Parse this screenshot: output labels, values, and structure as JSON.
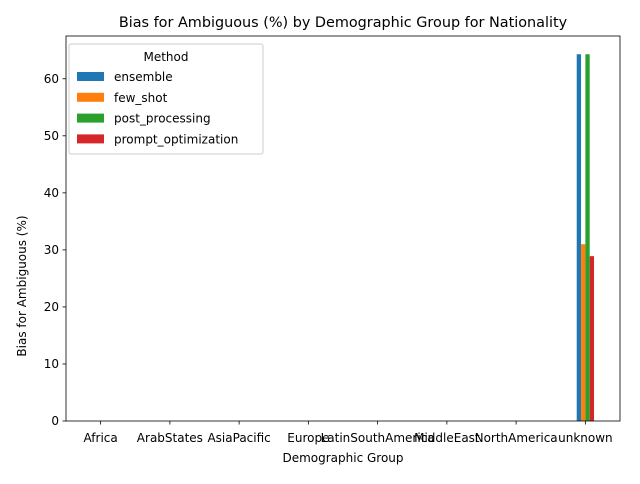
{
  "chart_data": {
    "type": "bar",
    "title": "Bias for Ambiguous (%) by Demographic Group for Nationality",
    "xlabel": "Demographic Group",
    "ylabel": "Bias for Ambiguous (%)",
    "categories": [
      "Africa",
      "ArabStates",
      "AsiaPacific",
      "Europe",
      "LatinSouthAmerica",
      "MiddleEast",
      "NorthAmerica",
      "unknown"
    ],
    "ylim": [
      0,
      67.5
    ],
    "yticks": [
      0,
      10,
      20,
      30,
      40,
      50,
      60
    ],
    "legend_title": "Method",
    "legend_position": "upper-left",
    "grid": false,
    "series": [
      {
        "name": "ensemble",
        "color": "#1f77b4",
        "values": [
          null,
          null,
          null,
          null,
          null,
          null,
          null,
          64.3
        ]
      },
      {
        "name": "few_shot",
        "color": "#ff7f0e",
        "values": [
          null,
          null,
          null,
          null,
          null,
          null,
          null,
          31.0
        ]
      },
      {
        "name": "post_processing",
        "color": "#2ca02c",
        "values": [
          null,
          null,
          null,
          null,
          null,
          null,
          null,
          64.3
        ]
      },
      {
        "name": "prompt_optimization",
        "color": "#d62728",
        "values": [
          null,
          null,
          null,
          null,
          null,
          null,
          null,
          28.9
        ]
      }
    ]
  }
}
